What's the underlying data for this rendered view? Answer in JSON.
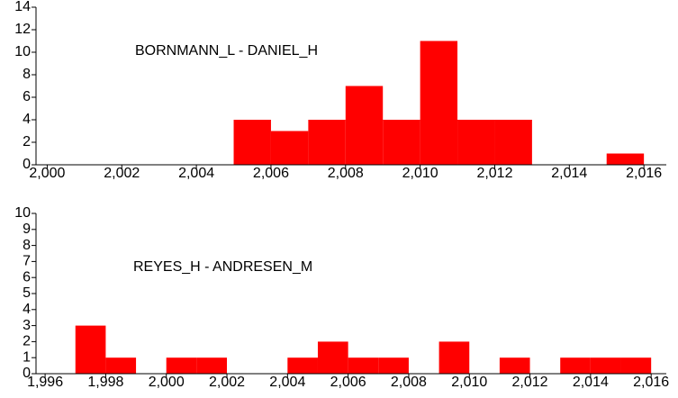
{
  "chart_data": [
    {
      "type": "histogram",
      "title": "BORNMANN_L - DANIEL_H",
      "bins": [
        2000,
        2001,
        2002,
        2003,
        2004,
        2005,
        2006,
        2007,
        2008,
        2009,
        2010,
        2011,
        2012,
        2013,
        2014,
        2015,
        2016
      ],
      "values": [
        0,
        0,
        0,
        0,
        0,
        4,
        3,
        4,
        7,
        4,
        11,
        4,
        4,
        0,
        0,
        1
      ],
      "color": "#ff0000",
      "xlim": [
        1999.7,
        2016.6
      ],
      "xticks": [
        {
          "value": 2000,
          "label": "2,000"
        },
        {
          "value": 2002,
          "label": "2,002"
        },
        {
          "value": 2004,
          "label": "2,004"
        },
        {
          "value": 2006,
          "label": "2,006"
        },
        {
          "value": 2008,
          "label": "2,008"
        },
        {
          "value": 2010,
          "label": "2,010"
        },
        {
          "value": 2012,
          "label": "2,012"
        },
        {
          "value": 2014,
          "label": "2,014"
        },
        {
          "value": 2016,
          "label": "2,016"
        }
      ],
      "ylim": [
        0,
        14
      ],
      "yticks": [
        0,
        2,
        4,
        6,
        8,
        10,
        12,
        14
      ]
    },
    {
      "type": "histogram",
      "title": "REYES_H - ANDRESEN_M",
      "bins": [
        1996,
        1997,
        1998,
        1999,
        2000,
        2001,
        2002,
        2003,
        2004,
        2005,
        2006,
        2007,
        2008,
        2009,
        2010,
        2011,
        2012,
        2013,
        2014,
        2015,
        2016
      ],
      "values": [
        0,
        3,
        1,
        0,
        1,
        1,
        0,
        0,
        1,
        2,
        1,
        1,
        0,
        2,
        0,
        1,
        0,
        1,
        1,
        1
      ],
      "color": "#ff0000",
      "xlim": [
        1995.7,
        2016.5
      ],
      "xticks": [
        {
          "value": 1996,
          "label": "1,996"
        },
        {
          "value": 1998,
          "label": "1,998"
        },
        {
          "value": 2000,
          "label": "2,000"
        },
        {
          "value": 2002,
          "label": "2,002"
        },
        {
          "value": 2004,
          "label": "2,004"
        },
        {
          "value": 2006,
          "label": "2,006"
        },
        {
          "value": 2008,
          "label": "2,008"
        },
        {
          "value": 2010,
          "label": "2,010"
        },
        {
          "value": 2012,
          "label": "2,012"
        },
        {
          "value": 2014,
          "label": "2,014"
        },
        {
          "value": 2016,
          "label": "2,016"
        }
      ],
      "ylim": [
        0,
        10
      ],
      "yticks": [
        0,
        1,
        2,
        3,
        4,
        5,
        6,
        7,
        8,
        9,
        10
      ]
    }
  ]
}
